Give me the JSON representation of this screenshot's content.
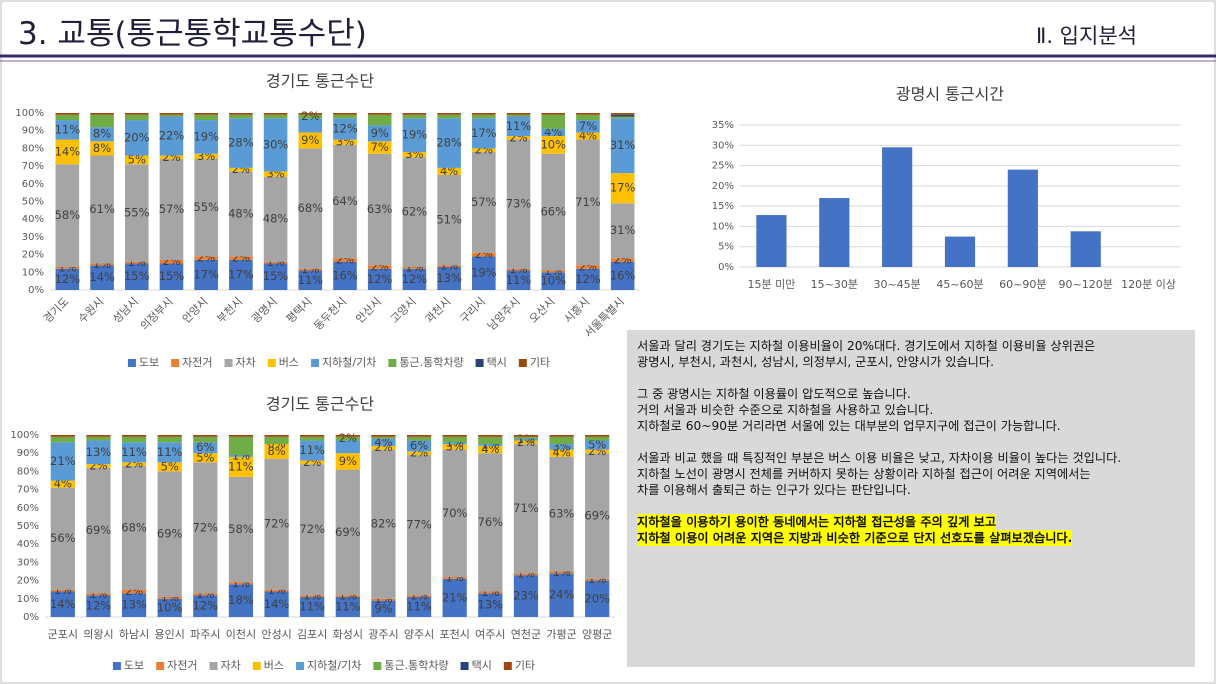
{
  "header": {
    "title": "3. 교통(통근통학교통수단)",
    "section": "Ⅱ. 입지분석"
  },
  "chart_data": [
    {
      "type": "stacked_bar",
      "title": "경기도 통근수단",
      "categories": [
        "경기도",
        "수원시",
        "성남시",
        "의정부시",
        "안양시",
        "부천시",
        "광명시",
        "평택시",
        "동두천시",
        "안산시",
        "고양시",
        "과천시",
        "구리시",
        "남양주시",
        "오산시",
        "시흥시",
        "서울특별시"
      ],
      "ylim": [
        0,
        100
      ],
      "yticks": [
        {
          "value": 0,
          "label": "0%"
        },
        {
          "value": 10,
          "label": "10%"
        },
        {
          "value": 20,
          "label": "20%"
        },
        {
          "value": 30,
          "label": "30%"
        },
        {
          "value": 40,
          "label": "40%"
        },
        {
          "value": 50,
          "label": "50%"
        },
        {
          "value": 60,
          "label": "60%"
        },
        {
          "value": 70,
          "label": "70%"
        },
        {
          "value": 80,
          "label": "80%"
        },
        {
          "value": 90,
          "label": "90%"
        },
        {
          "value": 100,
          "label": "100%"
        }
      ],
      "grid": false,
      "legend": "bottom",
      "series": [
        {
          "name": "도보",
          "color": "#4472c4",
          "values": [
            12,
            14,
            15,
            15,
            17,
            17,
            15,
            11,
            16,
            12,
            12,
            13,
            19,
            11,
            10,
            12,
            16
          ],
          "value_labels": [
            "12%",
            "14%",
            "15%",
            "15%",
            "17%",
            "17%",
            "15%",
            "11%",
            "16%",
            "12%",
            "12%",
            "13%",
            "19%",
            "11%",
            "10%",
            "12%",
            "16%"
          ]
        },
        {
          "name": "자전거",
          "color": "#ed7d31",
          "values": [
            1,
            1,
            1,
            2,
            2,
            2,
            1,
            1,
            2,
            2,
            1,
            1,
            2,
            1,
            1,
            2,
            2
          ],
          "value_labels": [
            "1%",
            "1%",
            "1%",
            "2%",
            "2%",
            "2%",
            "1%",
            "1%",
            "2%",
            "2%",
            "1%",
            "1%",
            "2%",
            "1%",
            "1%",
            "2%",
            "2%"
          ]
        },
        {
          "name": "자차",
          "color": "#a5a5a5",
          "values": [
            58,
            61,
            55,
            57,
            55,
            48,
            48,
            68,
            64,
            63,
            62,
            51,
            57,
            73,
            66,
            71,
            31
          ],
          "value_labels": [
            "58%",
            "61%",
            "55%",
            "57%",
            "55%",
            "48%",
            "48%",
            "68%",
            "64%",
            "63%",
            "62%",
            "51%",
            "57%",
            "73%",
            "66%",
            "71%",
            "31%"
          ]
        },
        {
          "name": "버스",
          "color": "#ffc000",
          "values": [
            14,
            8,
            5,
            2,
            3,
            2,
            3,
            9,
            3,
            7,
            3,
            4,
            2,
            2,
            10,
            4,
            17
          ],
          "value_labels": [
            "14%",
            "8%",
            "5%",
            "2%",
            "3%",
            "2%",
            "3%",
            "9%",
            "3%",
            "7%",
            "3%",
            "4%",
            "2%",
            "2%",
            "10%",
            "4%",
            "17%"
          ]
        },
        {
          "name": "지하철/기차",
          "color": "#5b9bd5",
          "values": [
            11,
            8,
            20,
            22,
            19,
            28,
            30,
            8,
            12,
            9,
            19,
            28,
            17,
            11,
            4,
            7,
            31
          ],
          "value_labels": [
            "11%",
            "8%",
            "20%",
            "22%",
            "19%",
            "28%",
            "30%",
            null,
            "12%",
            "9%",
            "19%",
            "28%",
            "17%",
            "11%",
            "4%",
            "7%",
            "31%"
          ]
        },
        {
          "name": "통근.통학차량",
          "color": "#70ad47",
          "values": [
            3,
            7,
            3,
            1,
            3,
            2,
            2,
            2,
            2,
            6,
            2,
            2,
            2,
            1,
            8,
            3,
            1
          ],
          "value_labels": [
            null,
            null,
            null,
            null,
            null,
            null,
            null,
            "2%",
            null,
            null,
            null,
            null,
            null,
            null,
            null,
            null,
            null
          ]
        },
        {
          "name": "택시",
          "color": "#264478",
          "values": [
            0,
            0,
            0,
            0,
            0,
            0,
            0,
            0,
            0,
            0,
            0,
            0,
            0,
            0,
            0,
            0,
            1
          ]
        },
        {
          "name": "기타",
          "color": "#9e480e",
          "values": [
            1,
            1,
            1,
            1,
            1,
            1,
            1,
            1,
            1,
            1,
            1,
            1,
            1,
            1,
            1,
            1,
            1
          ]
        }
      ]
    },
    {
      "type": "stacked_bar",
      "title": "경기도 통근수단",
      "categories": [
        "군포시",
        "의왕시",
        "하남시",
        "용인시",
        "파주시",
        "이천시",
        "안성시",
        "김포시",
        "화성시",
        "광주시",
        "양주시",
        "포천시",
        "여주시",
        "연천군",
        "가평군",
        "양평군"
      ],
      "ylim": [
        0,
        100
      ],
      "yticks": [
        {
          "value": 0,
          "label": "0%"
        },
        {
          "value": 10,
          "label": "10%"
        },
        {
          "value": 20,
          "label": "20%"
        },
        {
          "value": 30,
          "label": "30%"
        },
        {
          "value": 40,
          "label": "40%"
        },
        {
          "value": 50,
          "label": "50%"
        },
        {
          "value": 60,
          "label": "60%"
        },
        {
          "value": 70,
          "label": "70%"
        },
        {
          "value": 80,
          "label": "80%"
        },
        {
          "value": 90,
          "label": "90%"
        },
        {
          "value": 100,
          "label": "100%"
        }
      ],
      "grid": false,
      "legend": "bottom",
      "series": [
        {
          "name": "도보",
          "color": "#4472c4",
          "values": [
            14,
            12,
            13,
            10,
            12,
            18,
            14,
            11,
            11,
            9,
            11,
            21,
            13,
            23,
            24,
            20
          ],
          "value_labels": [
            "14%",
            "12%",
            "13%",
            "10%",
            "12%",
            "18%",
            "14%",
            "11%",
            "11%",
            "9%",
            "11%",
            "21%",
            "13%",
            "23%",
            "24%",
            "20%"
          ]
        },
        {
          "name": "자전거",
          "color": "#ed7d31",
          "values": [
            1,
            1,
            2,
            1,
            1,
            1,
            1,
            1,
            1,
            1,
            1,
            1,
            1,
            1,
            1,
            1
          ],
          "value_labels": [
            "1%",
            "1%",
            "2%",
            "1%",
            "1%",
            "1%",
            "1%",
            "1%",
            "1%",
            "1%",
            "1%",
            "1%",
            "1%",
            "1%",
            "1%",
            "1%"
          ]
        },
        {
          "name": "자차",
          "color": "#a5a5a5",
          "values": [
            56,
            69,
            68,
            69,
            72,
            58,
            72,
            72,
            69,
            82,
            77,
            70,
            76,
            71,
            63,
            69
          ],
          "value_labels": [
            "56%",
            "69%",
            "68%",
            "69%",
            "72%",
            "58%",
            "72%",
            "72%",
            "69%",
            "82%",
            "77%",
            "70%",
            "76%",
            "71%",
            "63%",
            "69%"
          ]
        },
        {
          "name": "버스",
          "color": "#ffc000",
          "values": [
            4,
            2,
            2,
            5,
            5,
            11,
            8,
            2,
            9,
            2,
            2,
            3,
            4,
            2,
            4,
            2
          ],
          "value_labels": [
            "4%",
            "2%",
            "2%",
            "5%",
            "5%",
            "11%",
            "8%",
            "2%",
            "9%",
            "2%",
            "2%",
            "3%",
            "4%",
            "2%",
            "4%",
            "2%"
          ]
        },
        {
          "name": "지하철/기차",
          "color": "#5b9bd5",
          "values": [
            21,
            13,
            11,
            11,
            6,
            1,
            0,
            11,
            7,
            4,
            6,
            1,
            1,
            1,
            3,
            5
          ],
          "value_labels": [
            "21%",
            "13%",
            "11%",
            "11%",
            "6%",
            "1%",
            "0%",
            "11%",
            null,
            "4%",
            "6%",
            "1%",
            "1%",
            "1%",
            "3%",
            "5%"
          ]
        },
        {
          "name": "통근.통학차량",
          "color": "#70ad47",
          "values": [
            3,
            2,
            3,
            3,
            3,
            10,
            4,
            2,
            2,
            1,
            2,
            3,
            4,
            1,
            4,
            2
          ],
          "value_labels": [
            null,
            null,
            null,
            null,
            null,
            null,
            null,
            null,
            "2%",
            null,
            null,
            null,
            null,
            null,
            null,
            null
          ]
        },
        {
          "name": "택시",
          "color": "#264478",
          "values": [
            0,
            0,
            0,
            0,
            0,
            0,
            0,
            0,
            0,
            0,
            0,
            0,
            0,
            0,
            0,
            0
          ]
        },
        {
          "name": "기타",
          "color": "#9e480e",
          "values": [
            1,
            1,
            1,
            1,
            1,
            1,
            1,
            1,
            1,
            1,
            1,
            1,
            1,
            1,
            1,
            1
          ]
        }
      ]
    },
    {
      "type": "bar",
      "title": "광명시 통근시간",
      "categories": [
        "15분 미만",
        "15~30분",
        "30~45분",
        "45~60분",
        "60~90분",
        "90~120분",
        "120분 이상"
      ],
      "values": [
        12.8,
        17,
        29.5,
        7.5,
        24,
        8.8,
        0
      ],
      "color": "#4472c4",
      "ylim": [
        0,
        35
      ],
      "yticks": [
        {
          "value": 0,
          "label": "0%"
        },
        {
          "value": 5,
          "label": "5%"
        },
        {
          "value": 10,
          "label": "10%"
        },
        {
          "value": 15,
          "label": "15%"
        },
        {
          "value": 20,
          "label": "20%"
        },
        {
          "value": 25,
          "label": "25%"
        },
        {
          "value": 30,
          "label": "30%"
        },
        {
          "value": 35,
          "label": "35%"
        }
      ],
      "grid": true
    }
  ],
  "note": {
    "paragraphs": [
      [
        "서울과 달리 경기도는 지하철 이용비율이 20%대다. 경기도에서 지하철 이용비율 상위권은",
        "광명시, 부천시, 과천시, 성남시, 의정부시, 군포시, 안양시가 있습니다."
      ],
      [
        "그 중 광명시는 지하철 이용률이 압도적으로 높습니다.",
        "거의 서울과 비슷한 수준으로 지하철을 사용하고 있습니다.",
        "지하철로 60~90분 거리라면 서울에 있는 대부분의 업무지구에 접근이 가능합니다."
      ],
      [
        "서울과 비교 했을 때 특징적인 부분은 버스 이용 비율은 낮고, 자차이용 비율이 높다는 것입니다.",
        "지하철 노선이 광명시 전체를 커버하지 못하는 상황이라 지하철 접근이 어려운 지역에서는",
        "차를 이용해서 출퇴근 하는 인구가 있다는 판단입니다."
      ]
    ],
    "highlight": [
      "지하철을 이용하기 용이한 동네에서는 지하철 접근성을 주의 깊게 보고",
      "지하철 이용이 어려운 지역은 지방과 비슷한 기준으로 단지 선호도를 살펴보겠습니다."
    ]
  }
}
